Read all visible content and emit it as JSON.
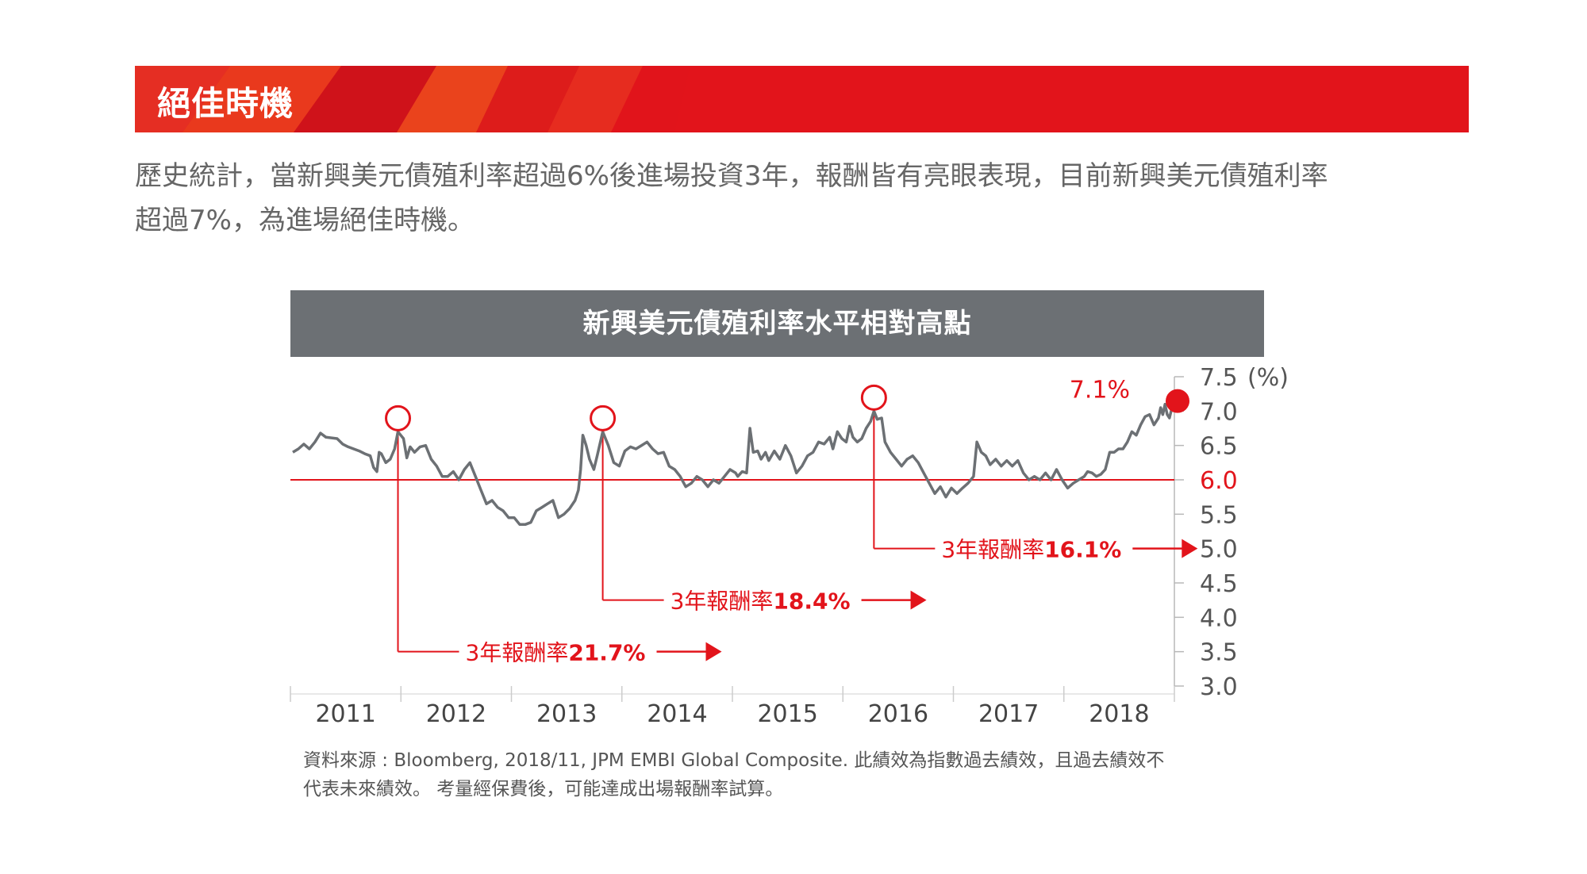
{
  "banner": {
    "title": "絕佳時機"
  },
  "intro": {
    "line1": "歷史統計，當新興美元債殖利率超過6%後進場投資3年，報酬皆有亮眼表現，目前新興美元債殖利率",
    "line2": "超過7%，為進場絕佳時機。"
  },
  "colors": {
    "accent": "#e2141b",
    "line": "#6c7074",
    "header_bg": "#6c7074",
    "text": "#666666"
  },
  "chart_data": {
    "type": "line",
    "title": "新興美元債殖利率水平相對高點",
    "unit_label": "(%)",
    "ylim": [
      3.0,
      7.5
    ],
    "y_ticks": [
      {
        "value": 7.5,
        "label": "7.5"
      },
      {
        "value": 7.0,
        "label": "7.0"
      },
      {
        "value": 6.5,
        "label": "6.5"
      },
      {
        "value": 6.0,
        "label": "6.0"
      },
      {
        "value": 5.5,
        "label": "5.5"
      },
      {
        "value": 5.0,
        "label": "5.0"
      },
      {
        "value": 4.5,
        "label": "4.5"
      },
      {
        "value": 4.0,
        "label": "4.0"
      },
      {
        "value": 3.5,
        "label": "3.5"
      },
      {
        "value": 3.0,
        "label": "3.0"
      }
    ],
    "highlight_tick": 6.0,
    "x_labels": [
      "2011",
      "2012",
      "2013",
      "2014",
      "2015",
      "2016",
      "2017",
      "2018"
    ],
    "xlim": [
      2011.0,
      2018.95
    ],
    "threshold": 6.0,
    "series": [
      {
        "values": [
          [
            2011.0,
            6.4
          ],
          [
            2011.05,
            6.45
          ],
          [
            2011.1,
            6.52
          ],
          [
            2011.15,
            6.45
          ],
          [
            2011.2,
            6.55
          ],
          [
            2011.25,
            6.68
          ],
          [
            2011.3,
            6.62
          ],
          [
            2011.35,
            6.61
          ],
          [
            2011.4,
            6.6
          ],
          [
            2011.45,
            6.52
          ],
          [
            2011.5,
            6.48
          ],
          [
            2011.55,
            6.45
          ],
          [
            2011.6,
            6.42
          ],
          [
            2011.65,
            6.38
          ],
          [
            2011.7,
            6.35
          ],
          [
            2011.73,
            6.18
          ],
          [
            2011.76,
            6.12
          ],
          [
            2011.78,
            6.4
          ],
          [
            2011.8,
            6.38
          ],
          [
            2011.84,
            6.25
          ],
          [
            2011.88,
            6.3
          ],
          [
            2011.92,
            6.45
          ],
          [
            2011.95,
            6.7
          ],
          [
            2012.0,
            6.6
          ],
          [
            2012.03,
            6.32
          ],
          [
            2012.06,
            6.48
          ],
          [
            2012.1,
            6.4
          ],
          [
            2012.15,
            6.48
          ],
          [
            2012.2,
            6.5
          ],
          [
            2012.25,
            6.3
          ],
          [
            2012.3,
            6.2
          ],
          [
            2012.35,
            6.05
          ],
          [
            2012.4,
            6.05
          ],
          [
            2012.45,
            6.12
          ],
          [
            2012.5,
            6.0
          ],
          [
            2012.55,
            6.15
          ],
          [
            2012.6,
            6.25
          ],
          [
            2012.65,
            6.05
          ],
          [
            2012.7,
            5.85
          ],
          [
            2012.75,
            5.65
          ],
          [
            2012.8,
            5.7
          ],
          [
            2012.85,
            5.6
          ],
          [
            2012.9,
            5.55
          ],
          [
            2012.95,
            5.45
          ],
          [
            2013.0,
            5.45
          ],
          [
            2013.05,
            5.35
          ],
          [
            2013.1,
            5.35
          ],
          [
            2013.15,
            5.38
          ],
          [
            2013.2,
            5.55
          ],
          [
            2013.25,
            5.6
          ],
          [
            2013.3,
            5.65
          ],
          [
            2013.35,
            5.7
          ],
          [
            2013.4,
            5.45
          ],
          [
            2013.45,
            5.5
          ],
          [
            2013.5,
            5.58
          ],
          [
            2013.55,
            5.7
          ],
          [
            2013.58,
            5.85
          ],
          [
            2013.6,
            6.15
          ],
          [
            2013.62,
            6.65
          ],
          [
            2013.65,
            6.5
          ],
          [
            2013.68,
            6.3
          ],
          [
            2013.72,
            6.15
          ],
          [
            2013.75,
            6.35
          ],
          [
            2013.8,
            6.7
          ],
          [
            2013.85,
            6.5
          ],
          [
            2013.9,
            6.25
          ],
          [
            2013.95,
            6.2
          ],
          [
            2014.0,
            6.42
          ],
          [
            2014.05,
            6.48
          ],
          [
            2014.1,
            6.45
          ],
          [
            2014.15,
            6.5
          ],
          [
            2014.2,
            6.55
          ],
          [
            2014.25,
            6.45
          ],
          [
            2014.3,
            6.38
          ],
          [
            2014.35,
            6.4
          ],
          [
            2014.4,
            6.2
          ],
          [
            2014.45,
            6.15
          ],
          [
            2014.5,
            6.05
          ],
          [
            2014.55,
            5.9
          ],
          [
            2014.6,
            5.95
          ],
          [
            2014.65,
            6.05
          ],
          [
            2014.7,
            6.0
          ],
          [
            2014.75,
            5.9
          ],
          [
            2014.8,
            6.0
          ],
          [
            2014.85,
            5.95
          ],
          [
            2014.9,
            6.05
          ],
          [
            2014.95,
            6.15
          ],
          [
            2015.0,
            6.1
          ],
          [
            2015.02,
            6.05
          ],
          [
            2015.06,
            6.12
          ],
          [
            2015.1,
            6.1
          ],
          [
            2015.13,
            6.75
          ],
          [
            2015.16,
            6.4
          ],
          [
            2015.2,
            6.42
          ],
          [
            2015.23,
            6.3
          ],
          [
            2015.27,
            6.4
          ],
          [
            2015.3,
            6.28
          ],
          [
            2015.35,
            6.42
          ],
          [
            2015.4,
            6.3
          ],
          [
            2015.45,
            6.5
          ],
          [
            2015.5,
            6.35
          ],
          [
            2015.55,
            6.1
          ],
          [
            2015.6,
            6.2
          ],
          [
            2015.65,
            6.35
          ],
          [
            2015.7,
            6.4
          ],
          [
            2015.75,
            6.55
          ],
          [
            2015.8,
            6.52
          ],
          [
            2015.85,
            6.62
          ],
          [
            2015.88,
            6.45
          ],
          [
            2015.92,
            6.7
          ],
          [
            2015.96,
            6.6
          ],
          [
            2016.0,
            6.55
          ],
          [
            2016.03,
            6.78
          ],
          [
            2016.06,
            6.62
          ],
          [
            2016.1,
            6.55
          ],
          [
            2016.14,
            6.6
          ],
          [
            2016.18,
            6.75
          ],
          [
            2016.22,
            6.85
          ],
          [
            2016.25,
            7.0
          ],
          [
            2016.28,
            6.88
          ],
          [
            2016.32,
            6.9
          ],
          [
            2016.35,
            6.55
          ],
          [
            2016.4,
            6.4
          ],
          [
            2016.45,
            6.3
          ],
          [
            2016.5,
            6.2
          ],
          [
            2016.55,
            6.3
          ],
          [
            2016.6,
            6.35
          ],
          [
            2016.65,
            6.25
          ],
          [
            2016.7,
            6.1
          ],
          [
            2016.75,
            5.95
          ],
          [
            2016.8,
            5.8
          ],
          [
            2016.85,
            5.9
          ],
          [
            2016.9,
            5.75
          ],
          [
            2016.95,
            5.88
          ],
          [
            2017.0,
            5.8
          ],
          [
            2017.05,
            5.88
          ],
          [
            2017.1,
            5.95
          ],
          [
            2017.15,
            6.05
          ],
          [
            2017.18,
            6.55
          ],
          [
            2017.22,
            6.4
          ],
          [
            2017.26,
            6.35
          ],
          [
            2017.3,
            6.22
          ],
          [
            2017.35,
            6.3
          ],
          [
            2017.4,
            6.2
          ],
          [
            2017.45,
            6.28
          ],
          [
            2017.5,
            6.2
          ],
          [
            2017.55,
            6.28
          ],
          [
            2017.6,
            6.1
          ],
          [
            2017.65,
            6.0
          ],
          [
            2017.7,
            6.05
          ],
          [
            2017.75,
            6.0
          ],
          [
            2017.8,
            6.1
          ],
          [
            2017.85,
            6.0
          ],
          [
            2017.9,
            6.15
          ],
          [
            2017.95,
            6.0
          ],
          [
            2018.0,
            5.88
          ],
          [
            2018.05,
            5.95
          ],
          [
            2018.1,
            6.0
          ],
          [
            2018.15,
            6.05
          ],
          [
            2018.18,
            6.12
          ],
          [
            2018.22,
            6.1
          ],
          [
            2018.26,
            6.05
          ],
          [
            2018.3,
            6.08
          ],
          [
            2018.34,
            6.15
          ],
          [
            2018.38,
            6.4
          ],
          [
            2018.42,
            6.4
          ],
          [
            2018.46,
            6.45
          ],
          [
            2018.5,
            6.45
          ],
          [
            2018.54,
            6.55
          ],
          [
            2018.58,
            6.7
          ],
          [
            2018.62,
            6.65
          ],
          [
            2018.66,
            6.8
          ],
          [
            2018.7,
            6.92
          ],
          [
            2018.74,
            6.95
          ],
          [
            2018.78,
            6.8
          ],
          [
            2018.82,
            6.9
          ],
          [
            2018.84,
            7.05
          ],
          [
            2018.86,
            6.95
          ],
          [
            2018.88,
            7.1
          ],
          [
            2018.9,
            6.95
          ],
          [
            2018.92,
            6.9
          ],
          [
            2018.95,
            7.1
          ]
        ]
      }
    ],
    "current": {
      "x": 2018.95,
      "value": 7.1,
      "label": "7.1%"
    },
    "annotations": [
      {
        "x": 2011.95,
        "peak": 6.7,
        "arrow_y": 3.5,
        "text_prefix": "3年報酬率",
        "text_value": "21.7%"
      },
      {
        "x": 2013.8,
        "peak": 6.7,
        "arrow_y": 4.25,
        "text_prefix": "3年報酬率",
        "text_value": "18.4%"
      },
      {
        "x": 2016.25,
        "peak": 7.0,
        "arrow_y": 5.0,
        "text_prefix": "3年報酬率",
        "text_value": "16.1%"
      }
    ]
  },
  "source": {
    "line1": "資料來源 : Bloomberg, 2018/11, JPM EMBI Global Composite. 此績效為指數過去績效，且過去績效不",
    "line2": "代表未來績效。 考量經保費後，可能達成出場報酬率試算。"
  }
}
